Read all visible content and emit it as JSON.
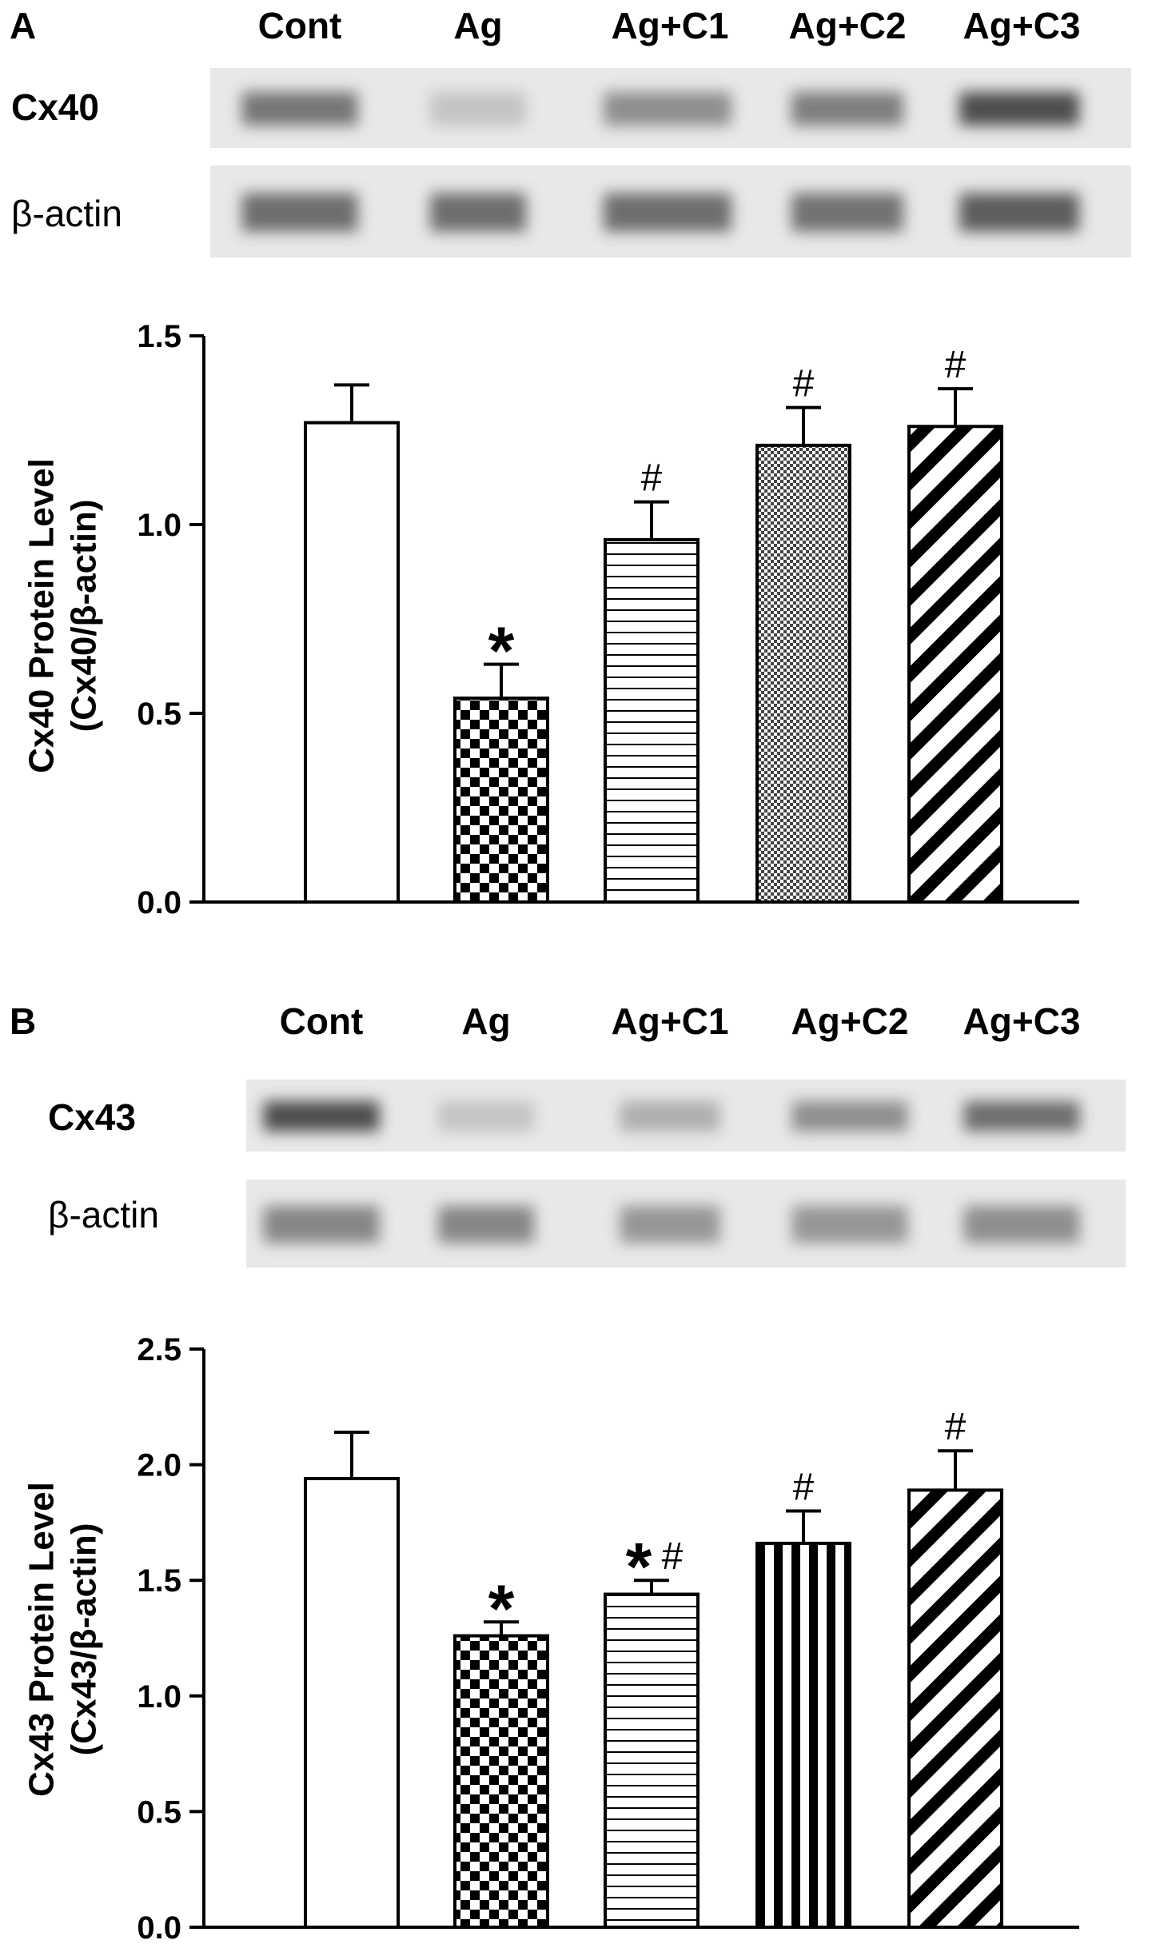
{
  "chart_data": [
    {
      "panel": "A",
      "type": "bar",
      "blot_labels": [
        "Cx40",
        "β-actin"
      ],
      "categories": [
        "Cont",
        "Ag",
        "Ag+C1",
        "Ag+C2",
        "Ag+C3"
      ],
      "values": [
        1.27,
        0.54,
        0.96,
        1.21,
        1.26
      ],
      "errors": [
        0.1,
        0.09,
        0.1,
        0.1,
        0.1
      ],
      "annotations": [
        "",
        "*",
        "#",
        "#",
        "#"
      ],
      "ylabel": [
        "Cx40 Protein Level",
        "(Cx40/β-actin)"
      ],
      "ylim": [
        0,
        1.5
      ],
      "yticks": [
        "0.0",
        "0.5",
        "1.0",
        "1.5"
      ],
      "patterns": [
        "none",
        "checker",
        "hlines",
        "finecheck",
        "diagonal"
      ],
      "grid": false,
      "legend": "none"
    },
    {
      "panel": "B",
      "type": "bar",
      "blot_labels": [
        "Cx43",
        "β-actin"
      ],
      "categories": [
        "Cont",
        "Ag",
        "Ag+C1",
        "Ag+C2",
        "Ag+C3"
      ],
      "values": [
        1.94,
        1.26,
        1.44,
        1.66,
        1.89
      ],
      "errors": [
        0.2,
        0.06,
        0.06,
        0.14,
        0.17
      ],
      "annotations": [
        "",
        "*",
        "*#",
        "#",
        "#"
      ],
      "ylabel": [
        "Cx43 Protein Level",
        "(Cx43/β-actin)"
      ],
      "ylim": [
        0,
        2.5
      ],
      "yticks": [
        "0.0",
        "0.5",
        "1.0",
        "1.5",
        "2.0",
        "2.5"
      ],
      "patterns": [
        "none",
        "checker",
        "hlines",
        "vlines",
        "diagonal"
      ],
      "grid": false,
      "legend": "none"
    }
  ],
  "colors": {
    "ink": "#000000",
    "background": "#ffffff",
    "blot_background": "#e8e8e8",
    "band": "#444444"
  }
}
